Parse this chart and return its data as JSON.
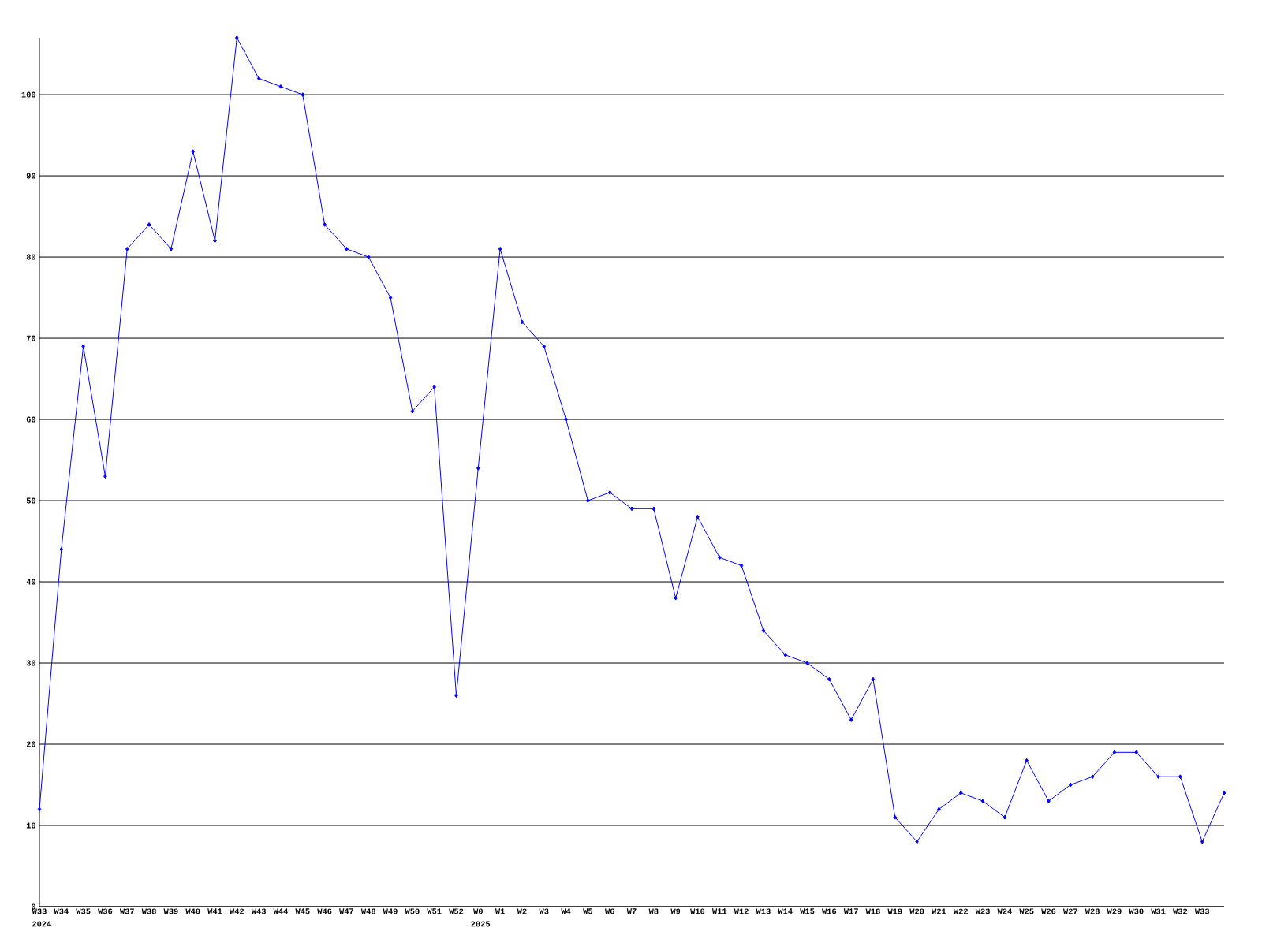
{
  "chart_data": {
    "type": "line",
    "categories": [
      "W33",
      "W34",
      "W35",
      "W36",
      "W37",
      "W38",
      "W39",
      "W40",
      "W41",
      "W42",
      "W43",
      "W44",
      "W45",
      "W46",
      "W47",
      "W48",
      "W49",
      "W50",
      "W51",
      "W52",
      "W0",
      "W1",
      "W2",
      "W3",
      "W4",
      "W5",
      "W6",
      "W7",
      "W8",
      "W9",
      "W10",
      "W11",
      "W12",
      "W13",
      "W14",
      "W15",
      "W16",
      "W17",
      "W18",
      "W19",
      "W20",
      "W21",
      "W22",
      "W23",
      "W24",
      "W25",
      "W26",
      "W27",
      "W28",
      "W29",
      "W30",
      "W31",
      "W32",
      "W33",
      null
    ],
    "values": [
      12,
      44,
      69,
      53,
      81,
      84,
      81,
      93,
      82,
      107,
      102,
      101,
      100,
      84,
      81,
      80,
      75,
      61,
      64,
      26,
      54,
      81,
      72,
      69,
      60,
      50,
      51,
      49,
      49,
      38,
      48,
      43,
      42,
      34,
      31,
      30,
      28,
      23,
      28,
      11,
      8,
      12,
      14,
      13,
      11,
      18,
      13,
      15,
      16,
      19,
      19,
      16,
      16,
      8,
      14
    ],
    "color": "#0000ff",
    "marker": "diamond",
    "grid": "y",
    "ylim": [
      0,
      107
    ],
    "yticks": [
      0,
      10,
      20,
      30,
      40,
      50,
      60,
      70,
      80,
      90,
      100
    ],
    "annotations": [
      "2024",
      "2025"
    ]
  }
}
